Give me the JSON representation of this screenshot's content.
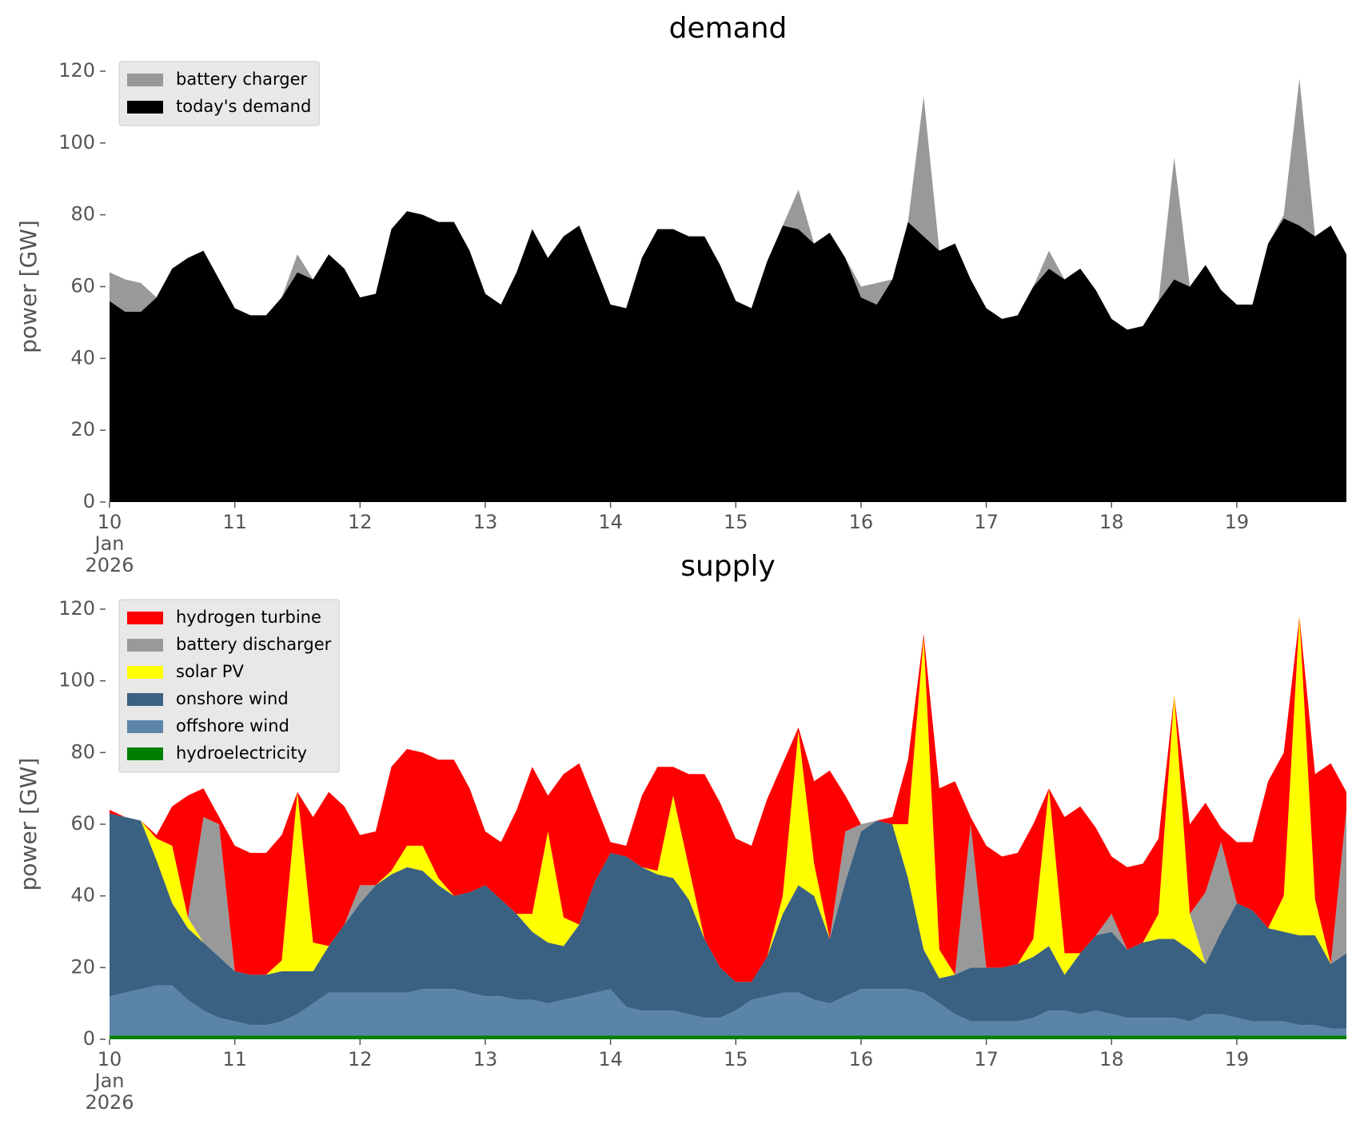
{
  "chart_data": [
    {
      "type": "area",
      "stacked": true,
      "title": "demand",
      "ylabel": "power [GW]",
      "legend": "upper left",
      "x": [
        "2026-01-10 00:00",
        "2026-01-10 03:00",
        "2026-01-10 06:00",
        "2026-01-10 09:00",
        "2026-01-10 12:00",
        "2026-01-10 15:00",
        "2026-01-10 18:00",
        "2026-01-10 21:00",
        "2026-01-11 00:00",
        "2026-01-11 03:00",
        "2026-01-11 06:00",
        "2026-01-11 09:00",
        "2026-01-11 12:00",
        "2026-01-11 15:00",
        "2026-01-11 18:00",
        "2026-01-11 21:00",
        "2026-01-12 00:00",
        "2026-01-12 03:00",
        "2026-01-12 06:00",
        "2026-01-12 09:00",
        "2026-01-12 12:00",
        "2026-01-12 15:00",
        "2026-01-12 18:00",
        "2026-01-12 21:00",
        "2026-01-13 00:00",
        "2026-01-13 03:00",
        "2026-01-13 06:00",
        "2026-01-13 09:00",
        "2026-01-13 12:00",
        "2026-01-13 15:00",
        "2026-01-13 18:00",
        "2026-01-13 21:00",
        "2026-01-14 00:00",
        "2026-01-14 03:00",
        "2026-01-14 06:00",
        "2026-01-14 09:00",
        "2026-01-14 12:00",
        "2026-01-14 15:00",
        "2026-01-14 18:00",
        "2026-01-14 21:00",
        "2026-01-15 00:00",
        "2026-01-15 03:00",
        "2026-01-15 06:00",
        "2026-01-15 09:00",
        "2026-01-15 12:00",
        "2026-01-15 15:00",
        "2026-01-15 18:00",
        "2026-01-15 21:00",
        "2026-01-16 00:00",
        "2026-01-16 03:00",
        "2026-01-16 06:00",
        "2026-01-16 09:00",
        "2026-01-16 12:00",
        "2026-01-16 15:00",
        "2026-01-16 18:00",
        "2026-01-16 21:00",
        "2026-01-17 00:00",
        "2026-01-17 03:00",
        "2026-01-17 06:00",
        "2026-01-17 09:00",
        "2026-01-17 12:00",
        "2026-01-17 15:00",
        "2026-01-17 18:00",
        "2026-01-17 21:00",
        "2026-01-18 00:00",
        "2026-01-18 03:00",
        "2026-01-18 06:00",
        "2026-01-18 09:00",
        "2026-01-18 12:00",
        "2026-01-18 15:00",
        "2026-01-18 18:00",
        "2026-01-18 21:00",
        "2026-01-19 00:00",
        "2026-01-19 03:00",
        "2026-01-19 06:00",
        "2026-01-19 09:00",
        "2026-01-19 12:00",
        "2026-01-19 15:00",
        "2026-01-19 18:00",
        "2026-01-19 21:00"
      ],
      "series": [
        {
          "name": "battery charger",
          "color": "#999999",
          "values": [
            8,
            9,
            8,
            0,
            0,
            0,
            0,
            0,
            0,
            0,
            0,
            0,
            5,
            0,
            0,
            0,
            0,
            0,
            0,
            0,
            0,
            0,
            0,
            0,
            0,
            0,
            0,
            0,
            0,
            0,
            0,
            0,
            0,
            0,
            0,
            0,
            0,
            0,
            0,
            0,
            0,
            0,
            0,
            0,
            11,
            0,
            0,
            0,
            3,
            6,
            0,
            0,
            39,
            0,
            0,
            0,
            0,
            0,
            0,
            0,
            5,
            0,
            0,
            0,
            0,
            0,
            0,
            0,
            34,
            0,
            0,
            0,
            0,
            0,
            0,
            1,
            41,
            0,
            0,
            0
          ]
        },
        {
          "name": "today's demand",
          "color": "#000000",
          "values": [
            56,
            53,
            53,
            57,
            65,
            68,
            70,
            62,
            54,
            52,
            52,
            57,
            64,
            62,
            69,
            65,
            57,
            58,
            76,
            81,
            80,
            78,
            78,
            70,
            58,
            55,
            64,
            76,
            68,
            74,
            77,
            66,
            55,
            54,
            68,
            76,
            76,
            74,
            74,
            66,
            56,
            54,
            67,
            77,
            76,
            72,
            75,
            68,
            57,
            55,
            62,
            78,
            74,
            70,
            72,
            62,
            54,
            51,
            52,
            60,
            65,
            62,
            65,
            59,
            51,
            48,
            49,
            56,
            62,
            60,
            66,
            59,
            55,
            55,
            72,
            79,
            77,
            74,
            77,
            69
          ]
        }
      ],
      "xlim": [
        "2026-01-10 00:00",
        "2026-01-19 21:00"
      ],
      "xticks": [
        {
          "value": "2026-01-10 00:00",
          "label": "10\nJan\n2026"
        },
        {
          "value": "2026-01-11 00:00",
          "label": "11"
        },
        {
          "value": "2026-01-12 00:00",
          "label": "12"
        },
        {
          "value": "2026-01-13 00:00",
          "label": "13"
        },
        {
          "value": "2026-01-14 00:00",
          "label": "14"
        },
        {
          "value": "2026-01-15 00:00",
          "label": "15"
        },
        {
          "value": "2026-01-16 00:00",
          "label": "16"
        },
        {
          "value": "2026-01-17 00:00",
          "label": "17"
        },
        {
          "value": "2026-01-18 00:00",
          "label": "18"
        },
        {
          "value": "2026-01-19 00:00",
          "label": "19"
        }
      ],
      "ylim": [
        0,
        120
      ],
      "yticks": [
        0,
        20,
        40,
        60,
        80,
        100,
        120
      ]
    },
    {
      "type": "area",
      "stacked": true,
      "title": "supply",
      "ylabel": "power [GW]",
      "legend": "upper left",
      "x": [
        "2026-01-10 00:00",
        "2026-01-10 03:00",
        "2026-01-10 06:00",
        "2026-01-10 09:00",
        "2026-01-10 12:00",
        "2026-01-10 15:00",
        "2026-01-10 18:00",
        "2026-01-10 21:00",
        "2026-01-11 00:00",
        "2026-01-11 03:00",
        "2026-01-11 06:00",
        "2026-01-11 09:00",
        "2026-01-11 12:00",
        "2026-01-11 15:00",
        "2026-01-11 18:00",
        "2026-01-11 21:00",
        "2026-01-12 00:00",
        "2026-01-12 03:00",
        "2026-01-12 06:00",
        "2026-01-12 09:00",
        "2026-01-12 12:00",
        "2026-01-12 15:00",
        "2026-01-12 18:00",
        "2026-01-12 21:00",
        "2026-01-13 00:00",
        "2026-01-13 03:00",
        "2026-01-13 06:00",
        "2026-01-13 09:00",
        "2026-01-13 12:00",
        "2026-01-13 15:00",
        "2026-01-13 18:00",
        "2026-01-13 21:00",
        "2026-01-14 00:00",
        "2026-01-14 03:00",
        "2026-01-14 06:00",
        "2026-01-14 09:00",
        "2026-01-14 12:00",
        "2026-01-14 15:00",
        "2026-01-14 18:00",
        "2026-01-14 21:00",
        "2026-01-15 00:00",
        "2026-01-15 03:00",
        "2026-01-15 06:00",
        "2026-01-15 09:00",
        "2026-01-15 12:00",
        "2026-01-15 15:00",
        "2026-01-15 18:00",
        "2026-01-15 21:00",
        "2026-01-16 00:00",
        "2026-01-16 03:00",
        "2026-01-16 06:00",
        "2026-01-16 09:00",
        "2026-01-16 12:00",
        "2026-01-16 15:00",
        "2026-01-16 18:00",
        "2026-01-16 21:00",
        "2026-01-17 00:00",
        "2026-01-17 03:00",
        "2026-01-17 06:00",
        "2026-01-17 09:00",
        "2026-01-17 12:00",
        "2026-01-17 15:00",
        "2026-01-17 18:00",
        "2026-01-17 21:00",
        "2026-01-18 00:00",
        "2026-01-18 03:00",
        "2026-01-18 06:00",
        "2026-01-18 09:00",
        "2026-01-18 12:00",
        "2026-01-18 15:00",
        "2026-01-18 18:00",
        "2026-01-18 21:00",
        "2026-01-19 00:00",
        "2026-01-19 03:00",
        "2026-01-19 06:00",
        "2026-01-19 09:00",
        "2026-01-19 12:00",
        "2026-01-19 15:00",
        "2026-01-19 18:00",
        "2026-01-19 21:00"
      ],
      "series": [
        {
          "name": "hydrogen turbine",
          "color": "#ff0000",
          "values": [
            1,
            0,
            0,
            1,
            11,
            34,
            8,
            2,
            35,
            34,
            34,
            35,
            0,
            35,
            43,
            33,
            14,
            15,
            29,
            27,
            26,
            33,
            38,
            29,
            15,
            16,
            29,
            41,
            10,
            40,
            45,
            22,
            3,
            3,
            20,
            29,
            8,
            26,
            46,
            46,
            40,
            38,
            44,
            37,
            1,
            23,
            47,
            10,
            0,
            0,
            2,
            18,
            1,
            45,
            54,
            2,
            34,
            31,
            31,
            32,
            0,
            38,
            41,
            30,
            16,
            23,
            22,
            21,
            0,
            25,
            25,
            4,
            17,
            19,
            41,
            40,
            0,
            35,
            56,
            5
          ]
        },
        {
          "name": "battery discharger",
          "color": "#999999",
          "values": [
            0,
            0,
            0,
            0,
            0,
            0,
            35,
            37,
            0,
            0,
            0,
            0,
            0,
            0,
            0,
            0,
            5,
            0,
            0,
            0,
            0,
            0,
            0,
            0,
            0,
            0,
            0,
            0,
            0,
            0,
            0,
            0,
            0,
            0,
            0,
            0,
            0,
            0,
            0,
            0,
            0,
            0,
            0,
            0,
            0,
            0,
            0,
            14,
            2,
            0,
            0,
            0,
            0,
            0,
            0,
            40,
            0,
            0,
            0,
            0,
            0,
            0,
            0,
            0,
            5,
            0,
            0,
            0,
            0,
            0,
            20,
            25,
            0,
            0,
            0,
            0,
            0,
            0,
            0,
            40
          ]
        },
        {
          "name": "solar PV",
          "color": "#ffff00",
          "values": [
            0,
            0,
            0,
            6,
            16,
            3,
            0,
            0,
            0,
            0,
            0,
            3,
            50,
            8,
            0,
            0,
            0,
            0,
            1,
            6,
            7,
            2,
            0,
            0,
            0,
            0,
            0,
            5,
            31,
            8,
            0,
            0,
            0,
            0,
            0,
            1,
            23,
            9,
            0,
            0,
            0,
            0,
            0,
            5,
            43,
            9,
            0,
            0,
            0,
            0,
            0,
            15,
            87,
            8,
            0,
            0,
            0,
            0,
            0,
            5,
            44,
            6,
            0,
            0,
            0,
            0,
            0,
            7,
            68,
            10,
            0,
            0,
            0,
            0,
            0,
            10,
            89,
            10,
            0,
            0
          ]
        },
        {
          "name": "onshore wind",
          "color": "#3b6182",
          "values": [
            51,
            49,
            47,
            35,
            23,
            20,
            19,
            17,
            14,
            14,
            14,
            14,
            12,
            9,
            13,
            19,
            25,
            30,
            33,
            35,
            33,
            29,
            26,
            28,
            31,
            27,
            24,
            19,
            17,
            15,
            20,
            31,
            38,
            42,
            40,
            38,
            37,
            32,
            22,
            14,
            8,
            5,
            11,
            22,
            30,
            29,
            18,
            32,
            44,
            47,
            46,
            31,
            12,
            7,
            11,
            15,
            15,
            15,
            16,
            17,
            18,
            10,
            17,
            21,
            23,
            19,
            21,
            22,
            22,
            20,
            14,
            23,
            32,
            31,
            26,
            25,
            25,
            25,
            18,
            21
          ]
        },
        {
          "name": "offshore wind",
          "color": "#5b85a8",
          "values": [
            11,
            12,
            13,
            14,
            14,
            10,
            7,
            5,
            4,
            3,
            3,
            4,
            6,
            9,
            12,
            12,
            12,
            12,
            12,
            12,
            13,
            13,
            13,
            12,
            11,
            11,
            10,
            10,
            9,
            10,
            11,
            12,
            13,
            8,
            7,
            7,
            7,
            6,
            5,
            5,
            7,
            10,
            11,
            12,
            12,
            10,
            9,
            11,
            13,
            13,
            13,
            13,
            12,
            9,
            6,
            4,
            4,
            4,
            4,
            5,
            7,
            7,
            6,
            7,
            6,
            5,
            5,
            5,
            5,
            4,
            6,
            6,
            5,
            4,
            4,
            4,
            3,
            3,
            2,
            2
          ]
        },
        {
          "name": "hydroelectricity",
          "color": "#008000",
          "values": [
            1,
            1,
            1,
            1,
            1,
            1,
            1,
            1,
            1,
            1,
            1,
            1,
            1,
            1,
            1,
            1,
            1,
            1,
            1,
            1,
            1,
            1,
            1,
            1,
            1,
            1,
            1,
            1,
            1,
            1,
            1,
            1,
            1,
            1,
            1,
            1,
            1,
            1,
            1,
            1,
            1,
            1,
            1,
            1,
            1,
            1,
            1,
            1,
            1,
            1,
            1,
            1,
            1,
            1,
            1,
            1,
            1,
            1,
            1,
            1,
            1,
            1,
            1,
            1,
            1,
            1,
            1,
            1,
            1,
            1,
            1,
            1,
            1,
            1,
            1,
            1,
            1,
            1,
            1,
            1
          ]
        }
      ],
      "xlim": [
        "2026-01-10 00:00",
        "2026-01-19 21:00"
      ],
      "xticks": [
        {
          "value": "2026-01-10 00:00",
          "label": "10\nJan\n2026"
        },
        {
          "value": "2026-01-11 00:00",
          "label": "11"
        },
        {
          "value": "2026-01-12 00:00",
          "label": "12"
        },
        {
          "value": "2026-01-13 00:00",
          "label": "13"
        },
        {
          "value": "2026-01-14 00:00",
          "label": "14"
        },
        {
          "value": "2026-01-15 00:00",
          "label": "15"
        },
        {
          "value": "2026-01-16 00:00",
          "label": "16"
        },
        {
          "value": "2026-01-17 00:00",
          "label": "17"
        },
        {
          "value": "2026-01-18 00:00",
          "label": "18"
        },
        {
          "value": "2026-01-19 00:00",
          "label": "19"
        }
      ],
      "ylim": [
        0,
        120
      ],
      "yticks": [
        0,
        20,
        40,
        60,
        80,
        100,
        120
      ]
    }
  ]
}
